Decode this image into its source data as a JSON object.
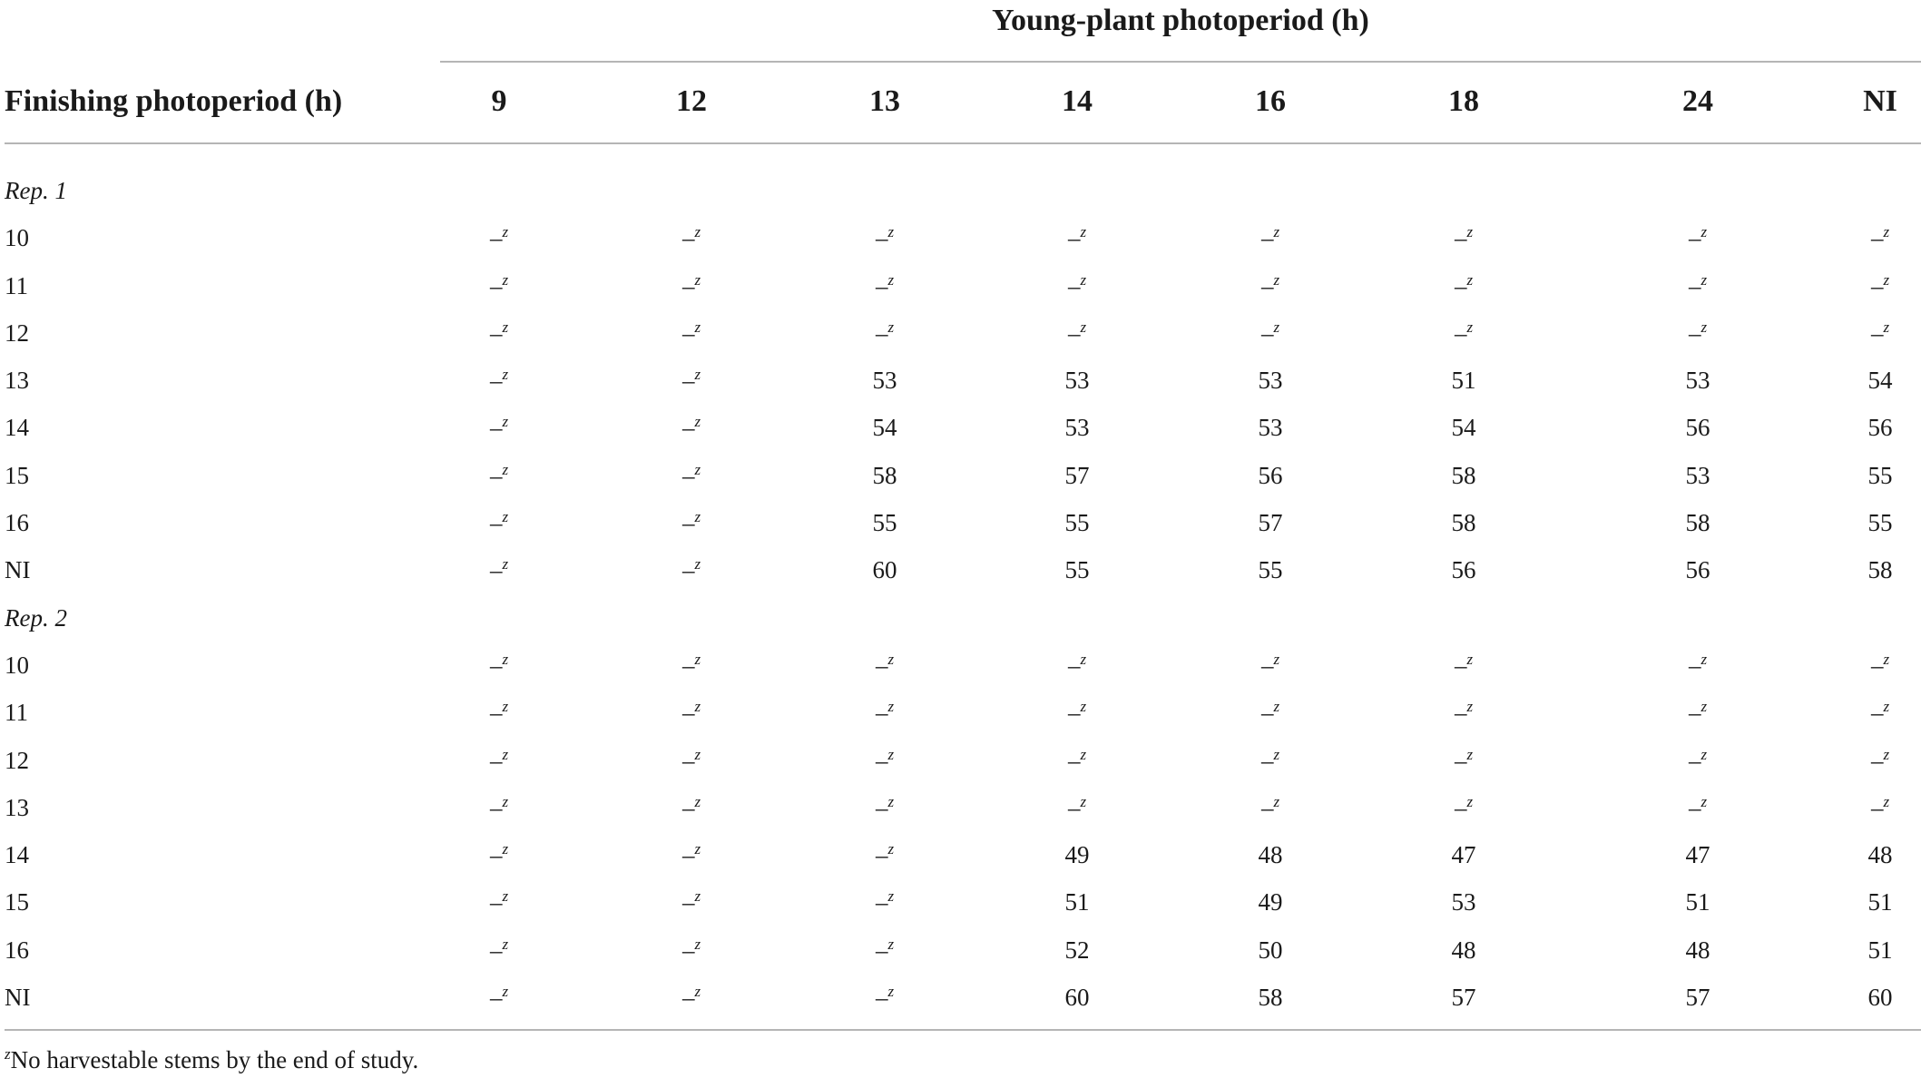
{
  "table": {
    "spanner_title": "Young-plant photoperiod (h)",
    "row_header": "Finishing photoperiod (h)",
    "columns": [
      "9",
      "12",
      "13",
      "14",
      "16",
      "18",
      "24",
      "NI"
    ],
    "missing_symbol": "–",
    "missing_note_mark": "z",
    "sections": [
      {
        "label": "Rep. 1",
        "rows": [
          {
            "label": "10",
            "values": [
              null,
              null,
              null,
              null,
              null,
              null,
              null,
              null
            ]
          },
          {
            "label": "11",
            "values": [
              null,
              null,
              null,
              null,
              null,
              null,
              null,
              null
            ]
          },
          {
            "label": "12",
            "values": [
              null,
              null,
              null,
              null,
              null,
              null,
              null,
              null
            ]
          },
          {
            "label": "13",
            "values": [
              null,
              null,
              "53",
              "53",
              "53",
              "51",
              "53",
              "54"
            ]
          },
          {
            "label": "14",
            "values": [
              null,
              null,
              "54",
              "53",
              "53",
              "54",
              "56",
              "56"
            ]
          },
          {
            "label": "15",
            "values": [
              null,
              null,
              "58",
              "57",
              "56",
              "58",
              "53",
              "55"
            ]
          },
          {
            "label": "16",
            "values": [
              null,
              null,
              "55",
              "55",
              "57",
              "58",
              "58",
              "55"
            ]
          },
          {
            "label": "NI",
            "values": [
              null,
              null,
              "60",
              "55",
              "55",
              "56",
              "56",
              "58"
            ]
          }
        ]
      },
      {
        "label": "Rep. 2",
        "rows": [
          {
            "label": "10",
            "values": [
              null,
              null,
              null,
              null,
              null,
              null,
              null,
              null
            ]
          },
          {
            "label": "11",
            "values": [
              null,
              null,
              null,
              null,
              null,
              null,
              null,
              null
            ]
          },
          {
            "label": "12",
            "values": [
              null,
              null,
              null,
              null,
              null,
              null,
              null,
              null
            ]
          },
          {
            "label": "13",
            "values": [
              null,
              null,
              null,
              null,
              null,
              null,
              null,
              null
            ]
          },
          {
            "label": "14",
            "values": [
              null,
              null,
              null,
              "49",
              "48",
              "47",
              "47",
              "48"
            ]
          },
          {
            "label": "15",
            "values": [
              null,
              null,
              null,
              "51",
              "49",
              "53",
              "51",
              "51"
            ]
          },
          {
            "label": "16",
            "values": [
              null,
              null,
              null,
              "52",
              "50",
              "48",
              "48",
              "51"
            ]
          },
          {
            "label": "NI",
            "values": [
              null,
              null,
              null,
              "60",
              "58",
              "57",
              "57",
              "60"
            ]
          }
        ]
      }
    ],
    "footnote": {
      "mark": "z",
      "text": "No harvestable stems by the end of study."
    }
  }
}
